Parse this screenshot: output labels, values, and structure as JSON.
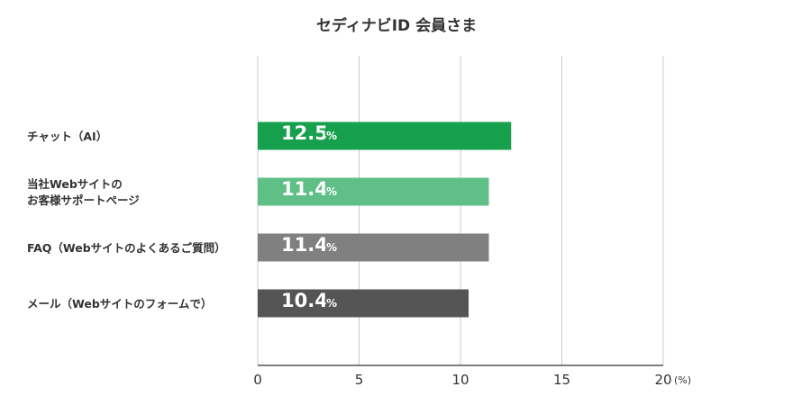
{
  "chart_data": {
    "type": "bar",
    "orientation": "horizontal",
    "title": "セディナビID 会員さま",
    "categories": [
      [
        "チャット（AI）"
      ],
      [
        "当社Webサイトの",
        "お客様サポートページ"
      ],
      [
        "FAQ（Webサイトのよくあるご質問）"
      ],
      [
        "メール（Webサイトのフォームで）"
      ]
    ],
    "values": [
      12.5,
      11.4,
      11.4,
      10.4
    ],
    "value_labels": [
      "12.5",
      "11.4",
      "11.4",
      "10.4"
    ],
    "value_unit": "%",
    "bar_colors": [
      "#17a04e",
      "#5fbf87",
      "#808080",
      "#555555"
    ],
    "xlim": [
      0,
      20
    ],
    "xticks": [
      0,
      5,
      10,
      15,
      20
    ],
    "xunit": "(%)",
    "grid": true,
    "legend": "none"
  }
}
